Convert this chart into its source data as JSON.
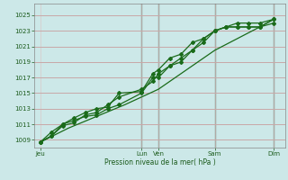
{
  "xlabel": "Pression niveau de la mer( hPa )",
  "bg_color": "#cce8e8",
  "grid_color_h": "#c8a8a8",
  "grid_color_v": "#d8c8c8",
  "line_color": "#1a6b1a",
  "marker_color": "#1a6b1a",
  "text_color": "#1a5a1a",
  "ylim": [
    1008.0,
    1026.5
  ],
  "yticks": [
    1009,
    1011,
    1013,
    1015,
    1017,
    1019,
    1021,
    1023,
    1025
  ],
  "xtick_labels": [
    "Jeu",
    "Lun",
    "Ven",
    "Sam",
    "Dim"
  ],
  "xtick_positions": [
    0,
    36,
    42,
    62,
    83
  ],
  "xlim": [
    -2,
    87
  ],
  "vline_positions": [
    36,
    42,
    62,
    83
  ],
  "vline_color": "#556655",
  "line1_x": [
    0,
    4,
    8,
    12,
    16,
    20,
    24,
    28,
    36,
    40,
    42,
    46,
    50,
    54,
    58,
    62,
    66,
    70,
    74,
    78,
    83
  ],
  "line1_y": [
    1008.7,
    1010.0,
    1011.0,
    1011.5,
    1012.0,
    1012.2,
    1013.0,
    1013.5,
    1015.0,
    1017.0,
    1017.0,
    1018.5,
    1019.0,
    1020.5,
    1022.0,
    1023.0,
    1023.5,
    1024.0,
    1024.0,
    1024.0,
    1024.5
  ],
  "line2_x": [
    0,
    4,
    8,
    12,
    16,
    20,
    24,
    28,
    36,
    40,
    42,
    46,
    50,
    54,
    58,
    62,
    66,
    70,
    74,
    78,
    83
  ],
  "line2_y": [
    1008.7,
    1009.5,
    1011.0,
    1011.8,
    1012.5,
    1013.0,
    1013.2,
    1015.0,
    1015.2,
    1017.5,
    1018.0,
    1019.5,
    1020.0,
    1021.5,
    1022.0,
    1023.0,
    1023.5,
    1023.5,
    1023.5,
    1023.5,
    1024.0
  ],
  "line3_x": [
    0,
    10,
    20,
    30,
    42,
    52,
    62,
    70,
    78,
    83
  ],
  "line3_y": [
    1008.7,
    1010.5,
    1012.0,
    1013.5,
    1015.5,
    1018.0,
    1020.5,
    1022.0,
    1023.5,
    1024.5
  ],
  "line4_x": [
    0,
    4,
    8,
    12,
    16,
    20,
    24,
    28,
    36,
    40,
    42,
    46,
    50,
    54,
    58,
    62,
    66,
    70,
    74,
    78,
    83
  ],
  "line4_y": [
    1008.7,
    1009.5,
    1010.8,
    1011.2,
    1012.2,
    1012.5,
    1013.5,
    1014.5,
    1015.5,
    1016.5,
    1017.5,
    1018.5,
    1019.5,
    1020.5,
    1021.5,
    1023.0,
    1023.5,
    1023.5,
    1023.5,
    1023.5,
    1024.5
  ]
}
